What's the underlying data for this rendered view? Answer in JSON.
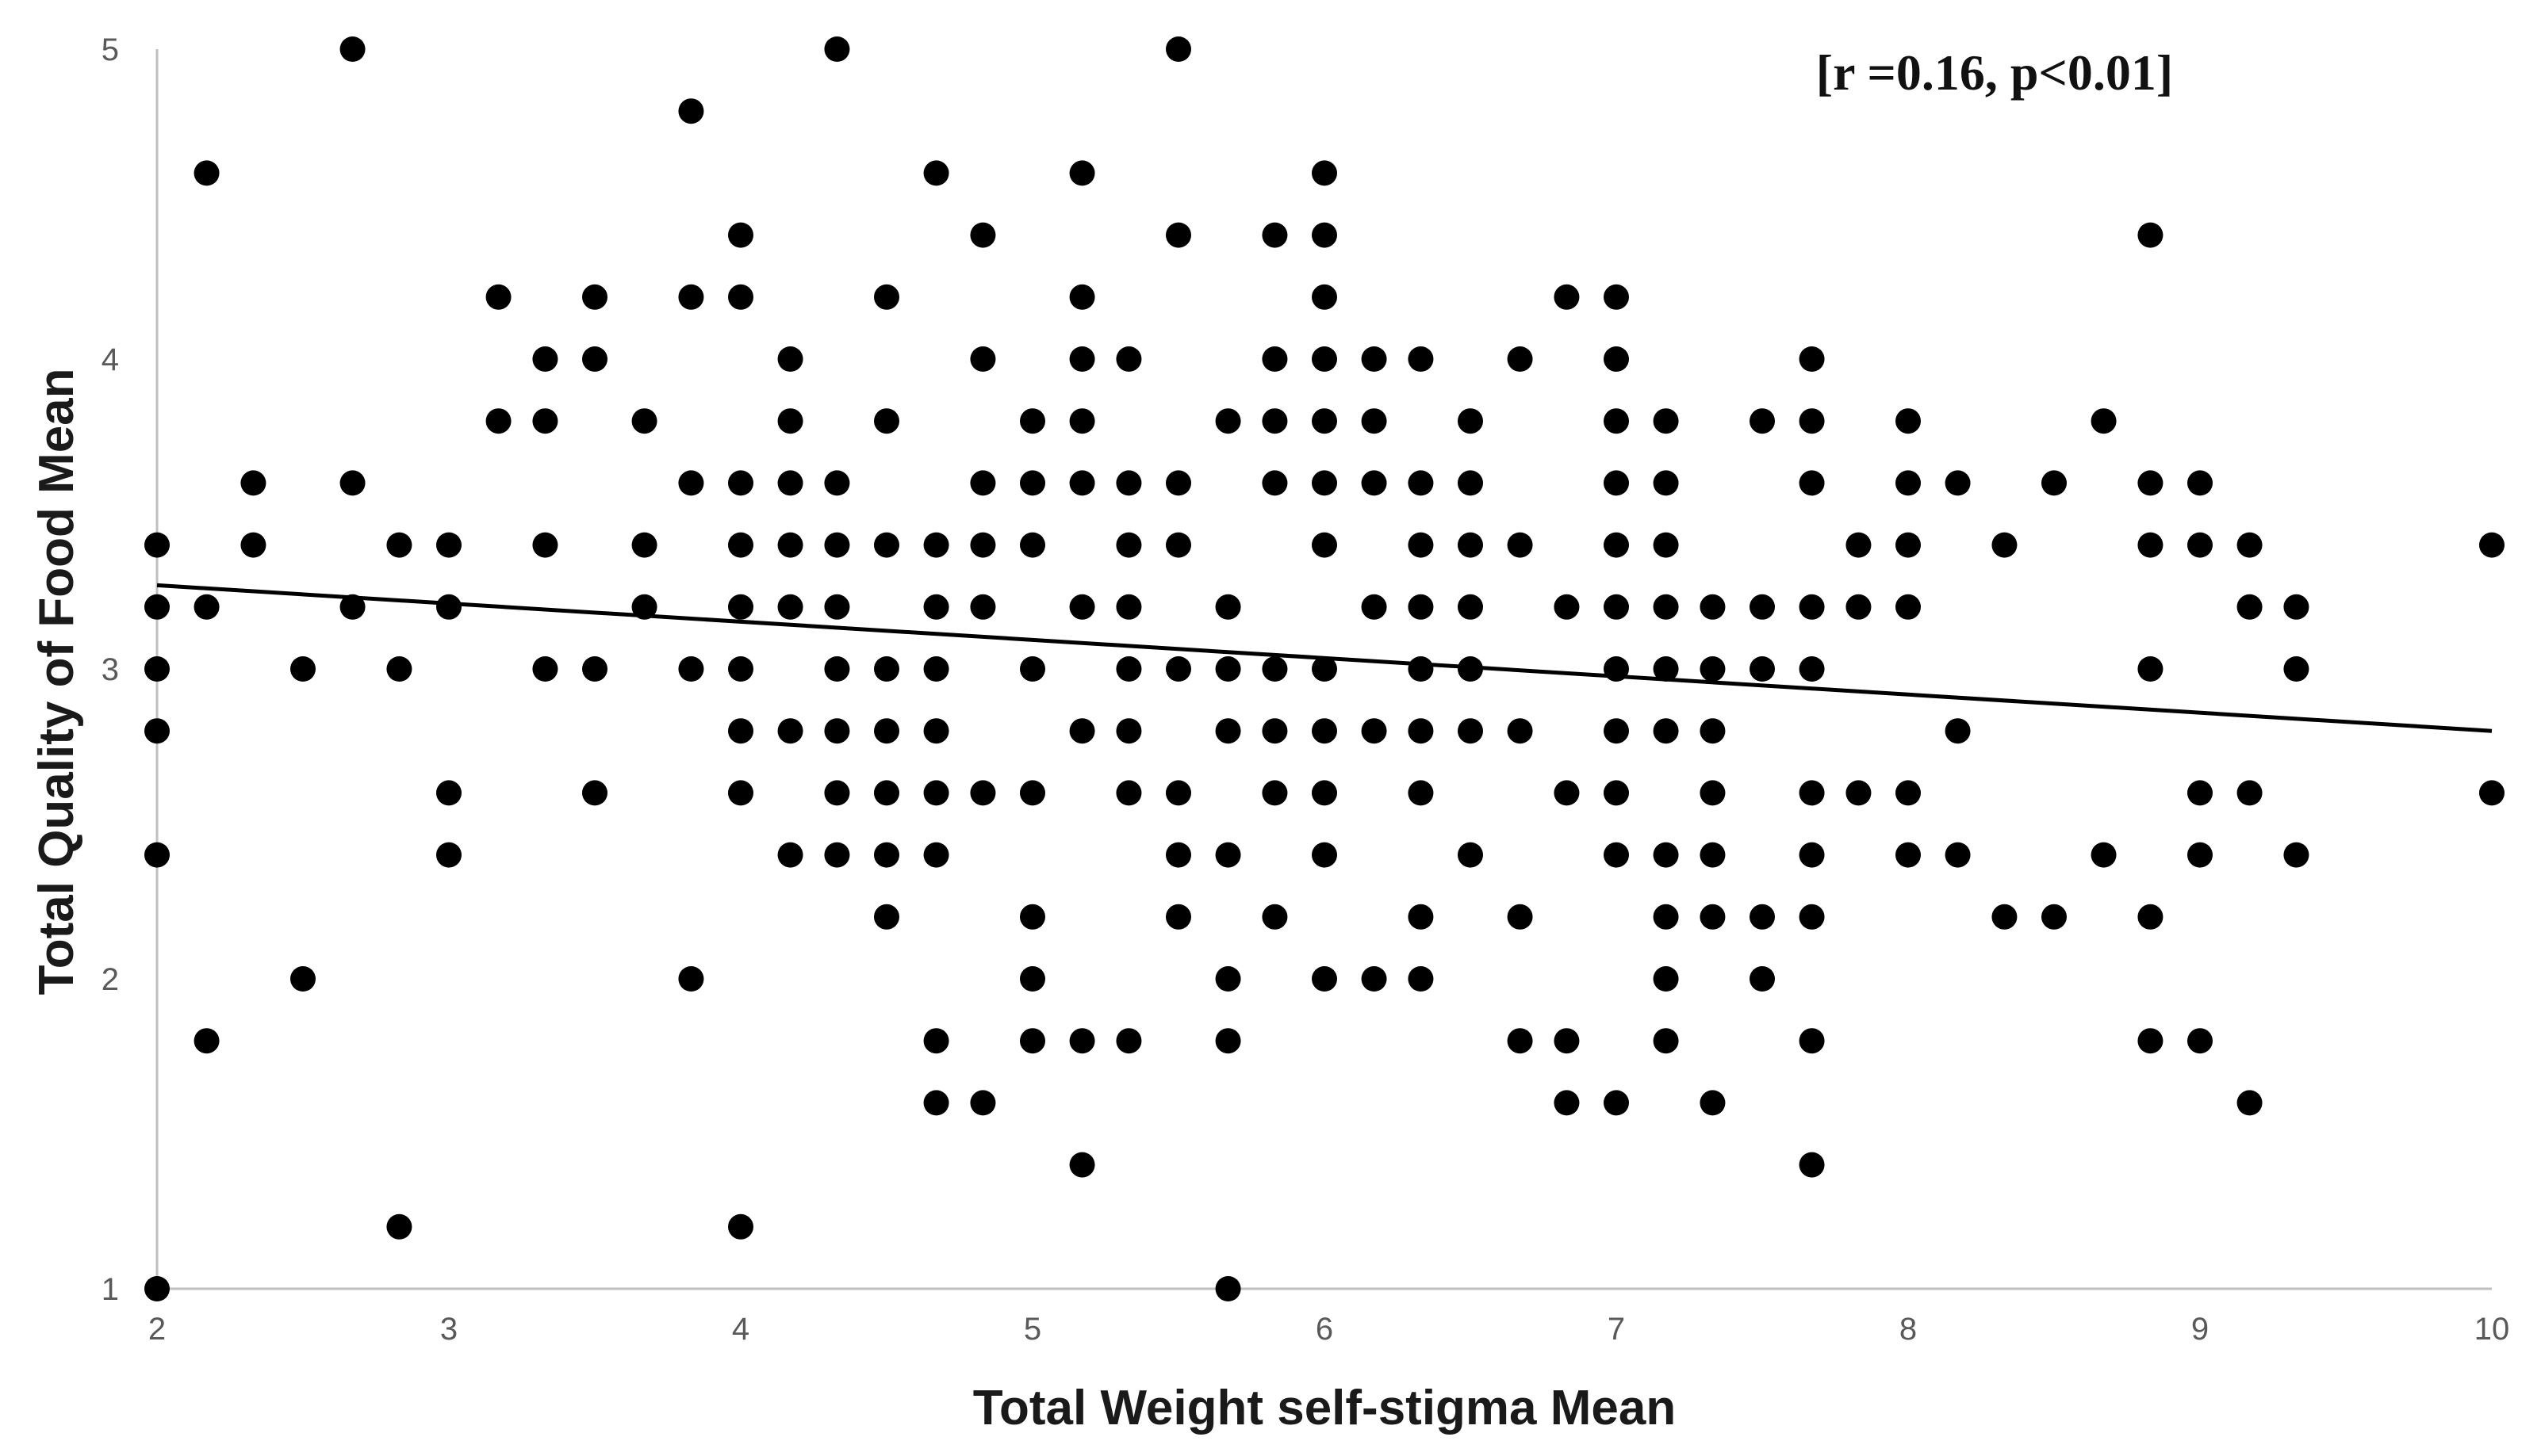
{
  "chart_data": {
    "type": "scatter",
    "xlabel": "Total Weight self-stigma Mean",
    "ylabel": "Total Quality of Food Mean",
    "xlim": [
      2,
      10
    ],
    "ylim": [
      1,
      5
    ],
    "xticks": [
      2,
      3,
      4,
      5,
      6,
      7,
      8,
      9,
      10
    ],
    "yticks": [
      1,
      2,
      3,
      4,
      5
    ],
    "x_tick_labels": [
      "2",
      "3",
      "4",
      "5",
      "6",
      "7",
      "8",
      "9",
      "10"
    ],
    "y_tick_labels": [
      "1",
      "2",
      "3",
      "4",
      "5"
    ],
    "grid": false,
    "legend": "none",
    "annotation": "[r =0.16, p<0.01]",
    "trendline": {
      "x": [
        2,
        10
      ],
      "y": [
        3.27,
        2.8
      ]
    },
    "points": [
      [
        2,
        3.4
      ],
      [
        2,
        3.2
      ],
      [
        2,
        3
      ],
      [
        2,
        2.8
      ],
      [
        2,
        2.4
      ],
      [
        2,
        1
      ],
      [
        2.17,
        4.6
      ],
      [
        2.17,
        3.2
      ],
      [
        2.17,
        1.8
      ],
      [
        2.33,
        3.6
      ],
      [
        2.33,
        3.4
      ],
      [
        2.5,
        3
      ],
      [
        2.5,
        2
      ],
      [
        2.67,
        5
      ],
      [
        2.67,
        3.6
      ],
      [
        2.67,
        3.2
      ],
      [
        2.83,
        3.4
      ],
      [
        2.83,
        3
      ],
      [
        2.83,
        1.2
      ],
      [
        3,
        3.4
      ],
      [
        3,
        3.2
      ],
      [
        3,
        2.6
      ],
      [
        3,
        2.4
      ],
      [
        3.17,
        4.2
      ],
      [
        3.17,
        3.8
      ],
      [
        3.33,
        4
      ],
      [
        3.33,
        3.8
      ],
      [
        3.33,
        3.4
      ],
      [
        3.33,
        3
      ],
      [
        3.5,
        4.2
      ],
      [
        3.5,
        4
      ],
      [
        3.5,
        3
      ],
      [
        3.5,
        2.6
      ],
      [
        3.67,
        3.8
      ],
      [
        3.67,
        3.4
      ],
      [
        3.67,
        3.2
      ],
      [
        3.83,
        4.8
      ],
      [
        3.83,
        4.2
      ],
      [
        3.83,
        3.6
      ],
      [
        3.83,
        3
      ],
      [
        3.83,
        2
      ],
      [
        4,
        4.4
      ],
      [
        4,
        4.2
      ],
      [
        4,
        3.6
      ],
      [
        4,
        3.4
      ],
      [
        4,
        3.2
      ],
      [
        4,
        3
      ],
      [
        4,
        2.8
      ],
      [
        4,
        2.6
      ],
      [
        4,
        1.2
      ],
      [
        4.17,
        4
      ],
      [
        4.17,
        3.8
      ],
      [
        4.17,
        3.6
      ],
      [
        4.17,
        3.4
      ],
      [
        4.17,
        3.2
      ],
      [
        4.17,
        2.8
      ],
      [
        4.17,
        2.4
      ],
      [
        4.33,
        5
      ],
      [
        4.33,
        3.6
      ],
      [
        4.33,
        3.4
      ],
      [
        4.33,
        3.2
      ],
      [
        4.33,
        3
      ],
      [
        4.33,
        2.8
      ],
      [
        4.33,
        2.6
      ],
      [
        4.33,
        2.4
      ],
      [
        4.5,
        4.2
      ],
      [
        4.5,
        3.8
      ],
      [
        4.5,
        3.4
      ],
      [
        4.5,
        3
      ],
      [
        4.5,
        2.8
      ],
      [
        4.5,
        2.6
      ],
      [
        4.5,
        2.4
      ],
      [
        4.5,
        2.2
      ],
      [
        4.67,
        4.6
      ],
      [
        4.67,
        3.4
      ],
      [
        4.67,
        3.2
      ],
      [
        4.67,
        3
      ],
      [
        4.67,
        2.8
      ],
      [
        4.67,
        2.6
      ],
      [
        4.67,
        2.4
      ],
      [
        4.67,
        1.8
      ],
      [
        4.67,
        1.6
      ],
      [
        4.83,
        4.4
      ],
      [
        4.83,
        4
      ],
      [
        4.83,
        3.6
      ],
      [
        4.83,
        3.4
      ],
      [
        4.83,
        3.2
      ],
      [
        4.83,
        2.6
      ],
      [
        4.83,
        1.6
      ],
      [
        5,
        3.8
      ],
      [
        5,
        3.6
      ],
      [
        5,
        3.4
      ],
      [
        5,
        3
      ],
      [
        5,
        2.6
      ],
      [
        5,
        2.2
      ],
      [
        5,
        2
      ],
      [
        5,
        1.8
      ],
      [
        5.17,
        4.6
      ],
      [
        5.17,
        4.2
      ],
      [
        5.17,
        4
      ],
      [
        5.17,
        3.8
      ],
      [
        5.17,
        3.6
      ],
      [
        5.17,
        3.2
      ],
      [
        5.17,
        2.8
      ],
      [
        5.17,
        1.8
      ],
      [
        5.17,
        1.4
      ],
      [
        5.33,
        4
      ],
      [
        5.33,
        3.6
      ],
      [
        5.33,
        3.4
      ],
      [
        5.33,
        3.2
      ],
      [
        5.33,
        3
      ],
      [
        5.33,
        2.8
      ],
      [
        5.33,
        2.6
      ],
      [
        5.33,
        1.8
      ],
      [
        5.5,
        5
      ],
      [
        5.5,
        4.4
      ],
      [
        5.5,
        3.6
      ],
      [
        5.5,
        3.4
      ],
      [
        5.5,
        3
      ],
      [
        5.5,
        2.6
      ],
      [
        5.5,
        2.4
      ],
      [
        5.5,
        2.2
      ],
      [
        5.67,
        3.8
      ],
      [
        5.67,
        3.2
      ],
      [
        5.67,
        3
      ],
      [
        5.67,
        2.8
      ],
      [
        5.67,
        2.4
      ],
      [
        5.67,
        2
      ],
      [
        5.67,
        1.8
      ],
      [
        5.67,
        1
      ],
      [
        5.83,
        4.4
      ],
      [
        5.83,
        4
      ],
      [
        5.83,
        3.8
      ],
      [
        5.83,
        3.6
      ],
      [
        5.83,
        3
      ],
      [
        5.83,
        2.8
      ],
      [
        5.83,
        2.6
      ],
      [
        5.83,
        2.2
      ],
      [
        6,
        4.6
      ],
      [
        6,
        4.4
      ],
      [
        6,
        4.2
      ],
      [
        6,
        4
      ],
      [
        6,
        3.8
      ],
      [
        6,
        3.6
      ],
      [
        6,
        3.4
      ],
      [
        6,
        3
      ],
      [
        6,
        2.8
      ],
      [
        6,
        2.6
      ],
      [
        6,
        2.4
      ],
      [
        6,
        2
      ],
      [
        6.17,
        4
      ],
      [
        6.17,
        3.8
      ],
      [
        6.17,
        3.6
      ],
      [
        6.17,
        3.2
      ],
      [
        6.17,
        2.8
      ],
      [
        6.17,
        2
      ],
      [
        6.33,
        4
      ],
      [
        6.33,
        3.6
      ],
      [
        6.33,
        3.4
      ],
      [
        6.33,
        3.2
      ],
      [
        6.33,
        3
      ],
      [
        6.33,
        2.8
      ],
      [
        6.33,
        2.6
      ],
      [
        6.33,
        2.2
      ],
      [
        6.33,
        2
      ],
      [
        6.5,
        3.8
      ],
      [
        6.5,
        3.6
      ],
      [
        6.5,
        3.4
      ],
      [
        6.5,
        3.2
      ],
      [
        6.5,
        3
      ],
      [
        6.5,
        2.8
      ],
      [
        6.5,
        2.4
      ],
      [
        6.67,
        4
      ],
      [
        6.67,
        3.4
      ],
      [
        6.67,
        2.8
      ],
      [
        6.67,
        2.2
      ],
      [
        6.67,
        1.8
      ],
      [
        6.83,
        4.2
      ],
      [
        6.83,
        3.2
      ],
      [
        6.83,
        2.6
      ],
      [
        6.83,
        1.8
      ],
      [
        6.83,
        1.6
      ],
      [
        7,
        4.2
      ],
      [
        7,
        4
      ],
      [
        7,
        3.8
      ],
      [
        7,
        3.6
      ],
      [
        7,
        3.4
      ],
      [
        7,
        3.2
      ],
      [
        7,
        3
      ],
      [
        7,
        2.8
      ],
      [
        7,
        2.6
      ],
      [
        7,
        2.4
      ],
      [
        7,
        1.6
      ],
      [
        7.17,
        3.8
      ],
      [
        7.17,
        3.6
      ],
      [
        7.17,
        3.4
      ],
      [
        7.17,
        3.2
      ],
      [
        7.17,
        3
      ],
      [
        7.17,
        2.8
      ],
      [
        7.17,
        2.4
      ],
      [
        7.17,
        2.2
      ],
      [
        7.17,
        2
      ],
      [
        7.17,
        1.8
      ],
      [
        7.33,
        3.2
      ],
      [
        7.33,
        3
      ],
      [
        7.33,
        2.8
      ],
      [
        7.33,
        2.6
      ],
      [
        7.33,
        2.4
      ],
      [
        7.33,
        2.2
      ],
      [
        7.33,
        1.6
      ],
      [
        7.5,
        3.8
      ],
      [
        7.5,
        3.2
      ],
      [
        7.5,
        3
      ],
      [
        7.5,
        2.2
      ],
      [
        7.5,
        2
      ],
      [
        7.67,
        4
      ],
      [
        7.67,
        3.8
      ],
      [
        7.67,
        3.6
      ],
      [
        7.67,
        3.2
      ],
      [
        7.67,
        3
      ],
      [
        7.67,
        2.6
      ],
      [
        7.67,
        2.4
      ],
      [
        7.67,
        2.2
      ],
      [
        7.67,
        1.8
      ],
      [
        7.67,
        1.4
      ],
      [
        7.83,
        3.4
      ],
      [
        7.83,
        3.2
      ],
      [
        7.83,
        2.6
      ],
      [
        8,
        3.8
      ],
      [
        8,
        3.6
      ],
      [
        8,
        3.4
      ],
      [
        8,
        3.2
      ],
      [
        8,
        2.6
      ],
      [
        8,
        2.4
      ],
      [
        8.17,
        3.6
      ],
      [
        8.17,
        2.8
      ],
      [
        8.17,
        2.4
      ],
      [
        8.33,
        3.4
      ],
      [
        8.33,
        2.2
      ],
      [
        8.5,
        3.6
      ],
      [
        8.5,
        2.2
      ],
      [
        8.67,
        3.8
      ],
      [
        8.67,
        2.4
      ],
      [
        8.83,
        4.4
      ],
      [
        8.83,
        3.6
      ],
      [
        8.83,
        3.4
      ],
      [
        8.83,
        3
      ],
      [
        8.83,
        2.2
      ],
      [
        8.83,
        1.8
      ],
      [
        9,
        3.6
      ],
      [
        9,
        3.4
      ],
      [
        9,
        2.6
      ],
      [
        9,
        2.4
      ],
      [
        9,
        1.8
      ],
      [
        9.17,
        3.4
      ],
      [
        9.17,
        3.2
      ],
      [
        9.17,
        2.6
      ],
      [
        9.17,
        1.6
      ],
      [
        9.33,
        3.2
      ],
      [
        9.33,
        3
      ],
      [
        9.33,
        2.4
      ],
      [
        10,
        3.4
      ],
      [
        10,
        2.6
      ]
    ]
  }
}
